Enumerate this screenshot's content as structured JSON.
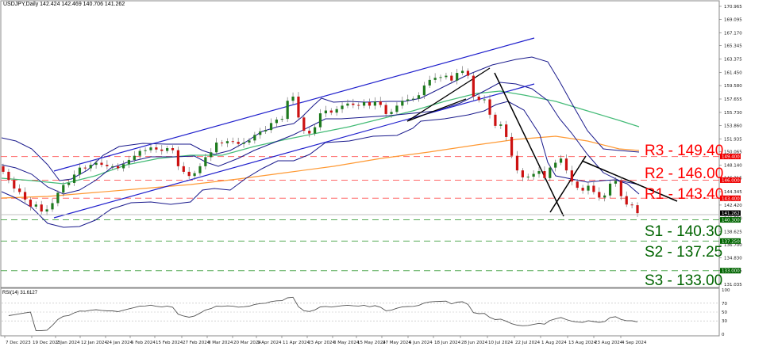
{
  "header": {
    "title": "USDJPY,Daily  142.424 142.469 140.706 141.262",
    "symbol": "USDJPY",
    "timeframe": "Daily",
    "ohlc": {
      "open": "142.424",
      "high": "142.469",
      "low": "140.706",
      "close": "141.262"
    }
  },
  "rsi": {
    "title": "RSI(14) 31.6127",
    "levels": [
      "100",
      "70",
      "50",
      "30",
      "0"
    ]
  },
  "levels": {
    "r3": {
      "label": "R3 - 149.40",
      "tag": "149.400",
      "color": "#ff0000"
    },
    "r2": {
      "label": "R2 - 146.00",
      "tag": "146.000",
      "color": "#ff0000"
    },
    "r1": {
      "label": "R1 - 143.40",
      "tag": "143.400",
      "color": "#ff0000"
    },
    "s1": {
      "label": "S1 - 140.30",
      "tag": "140.300",
      "color": "#006400"
    },
    "s2": {
      "label": "S2 - 137.25",
      "tag": "137.250",
      "color": "#006400"
    },
    "s3": {
      "label": "S3 - 133.00",
      "tag": "133.000",
      "color": "#006400"
    },
    "current": {
      "tag": "141.262",
      "color": "#000000"
    }
  },
  "chart_data": {
    "type": "candlestick",
    "title": "USDJPY, Daily",
    "price_axis_ticks": [
      "170.965",
      "169.095",
      "167.170",
      "165.345",
      "163.375",
      "161.450",
      "159.580",
      "157.655",
      "155.730",
      "153.860",
      "151.935",
      "150.065",
      "148.140",
      "146.315",
      "144.345",
      "142.420",
      "140.550",
      "138.625",
      "136.700",
      "134.830",
      "133.005",
      "131.035"
    ],
    "x_tick_labels": [
      "7 Dec 2023",
      "19 Dec 2023",
      "2 Jan 2024",
      "12 Jan 2024",
      "24 Jan 2024",
      "5 Feb 2024",
      "15 Feb 2024",
      "27 Feb 2024",
      "8 Mar 2024",
      "20 Mar 2024",
      "1 Apr 2024",
      "11 Apr 2024",
      "23 Apr 2024",
      "3 May 2024",
      "15 May 2024",
      "27 May 2024",
      "6 Jun 2024",
      "18 Jun 2024",
      "28 Jun 2024",
      "10 Jul 2024",
      "22 Jul 2024",
      "1 Aug 2024",
      "13 Aug 2024",
      "23 Aug 2024",
      "4 Sep 2024"
    ],
    "ylim": [
      131.035,
      170.965
    ],
    "support_resistance": {
      "R3": 149.4,
      "R2": 146.0,
      "R1": 143.4,
      "S1": 140.3,
      "S2": 137.25,
      "S3": 133.0
    },
    "last_close": 141.262,
    "indicators": [
      "Bollinger Bands (blue)",
      "MA 100 (green)",
      "MA 200 (orange)",
      "RSI(14)"
    ],
    "rsi_value": 31.6127,
    "rsi_levels": [
      70,
      50,
      30
    ],
    "close_series_approx": [
      147.2,
      146.0,
      144.8,
      144.3,
      143.2,
      142.2,
      142.5,
      141.5,
      141.8,
      142.7,
      144.2,
      145.3,
      145.6,
      146.8,
      147.8,
      147.7,
      148.2,
      148.5,
      148.2,
      148.0,
      148.0,
      147.7,
      148.3,
      148.9,
      149.5,
      150.2,
      150.3,
      150.7,
      150.4,
      150.2,
      150.6,
      150.3,
      148.0,
      147.2,
      146.6,
      147.0,
      148.0,
      149.3,
      150.0,
      151.4,
      151.3,
      151.6,
      151.5,
      151.2,
      151.4,
      151.7,
      152.5,
      153.0,
      153.2,
      154.2,
      154.7,
      154.8,
      157.4,
      158.0,
      155.0,
      153.1,
      152.7,
      153.6,
      155.6,
      156.0,
      155.7,
      156.2,
      156.7,
      157.0,
      156.8,
      156.7,
      157.2,
      156.7,
      157.3,
      156.8,
      155.5,
      155.8,
      156.7,
      157.4,
      157.6,
      157.7,
      158.2,
      159.6,
      160.4,
      160.7,
      160.8,
      161.0,
      160.3,
      161.4,
      161.7,
      161.0,
      158.0,
      157.5,
      157.6,
      155.4,
      153.8,
      154.0,
      152.2,
      149.5,
      147.4,
      146.4,
      146.5,
      146.9,
      147.3,
      146.3,
      147.8,
      148.5,
      149.1,
      147.4,
      145.8,
      144.9,
      144.5,
      145.2,
      144.3,
      143.5,
      143.8,
      145.5,
      145.9,
      143.7,
      142.5,
      142.4,
      141.262
    ]
  }
}
